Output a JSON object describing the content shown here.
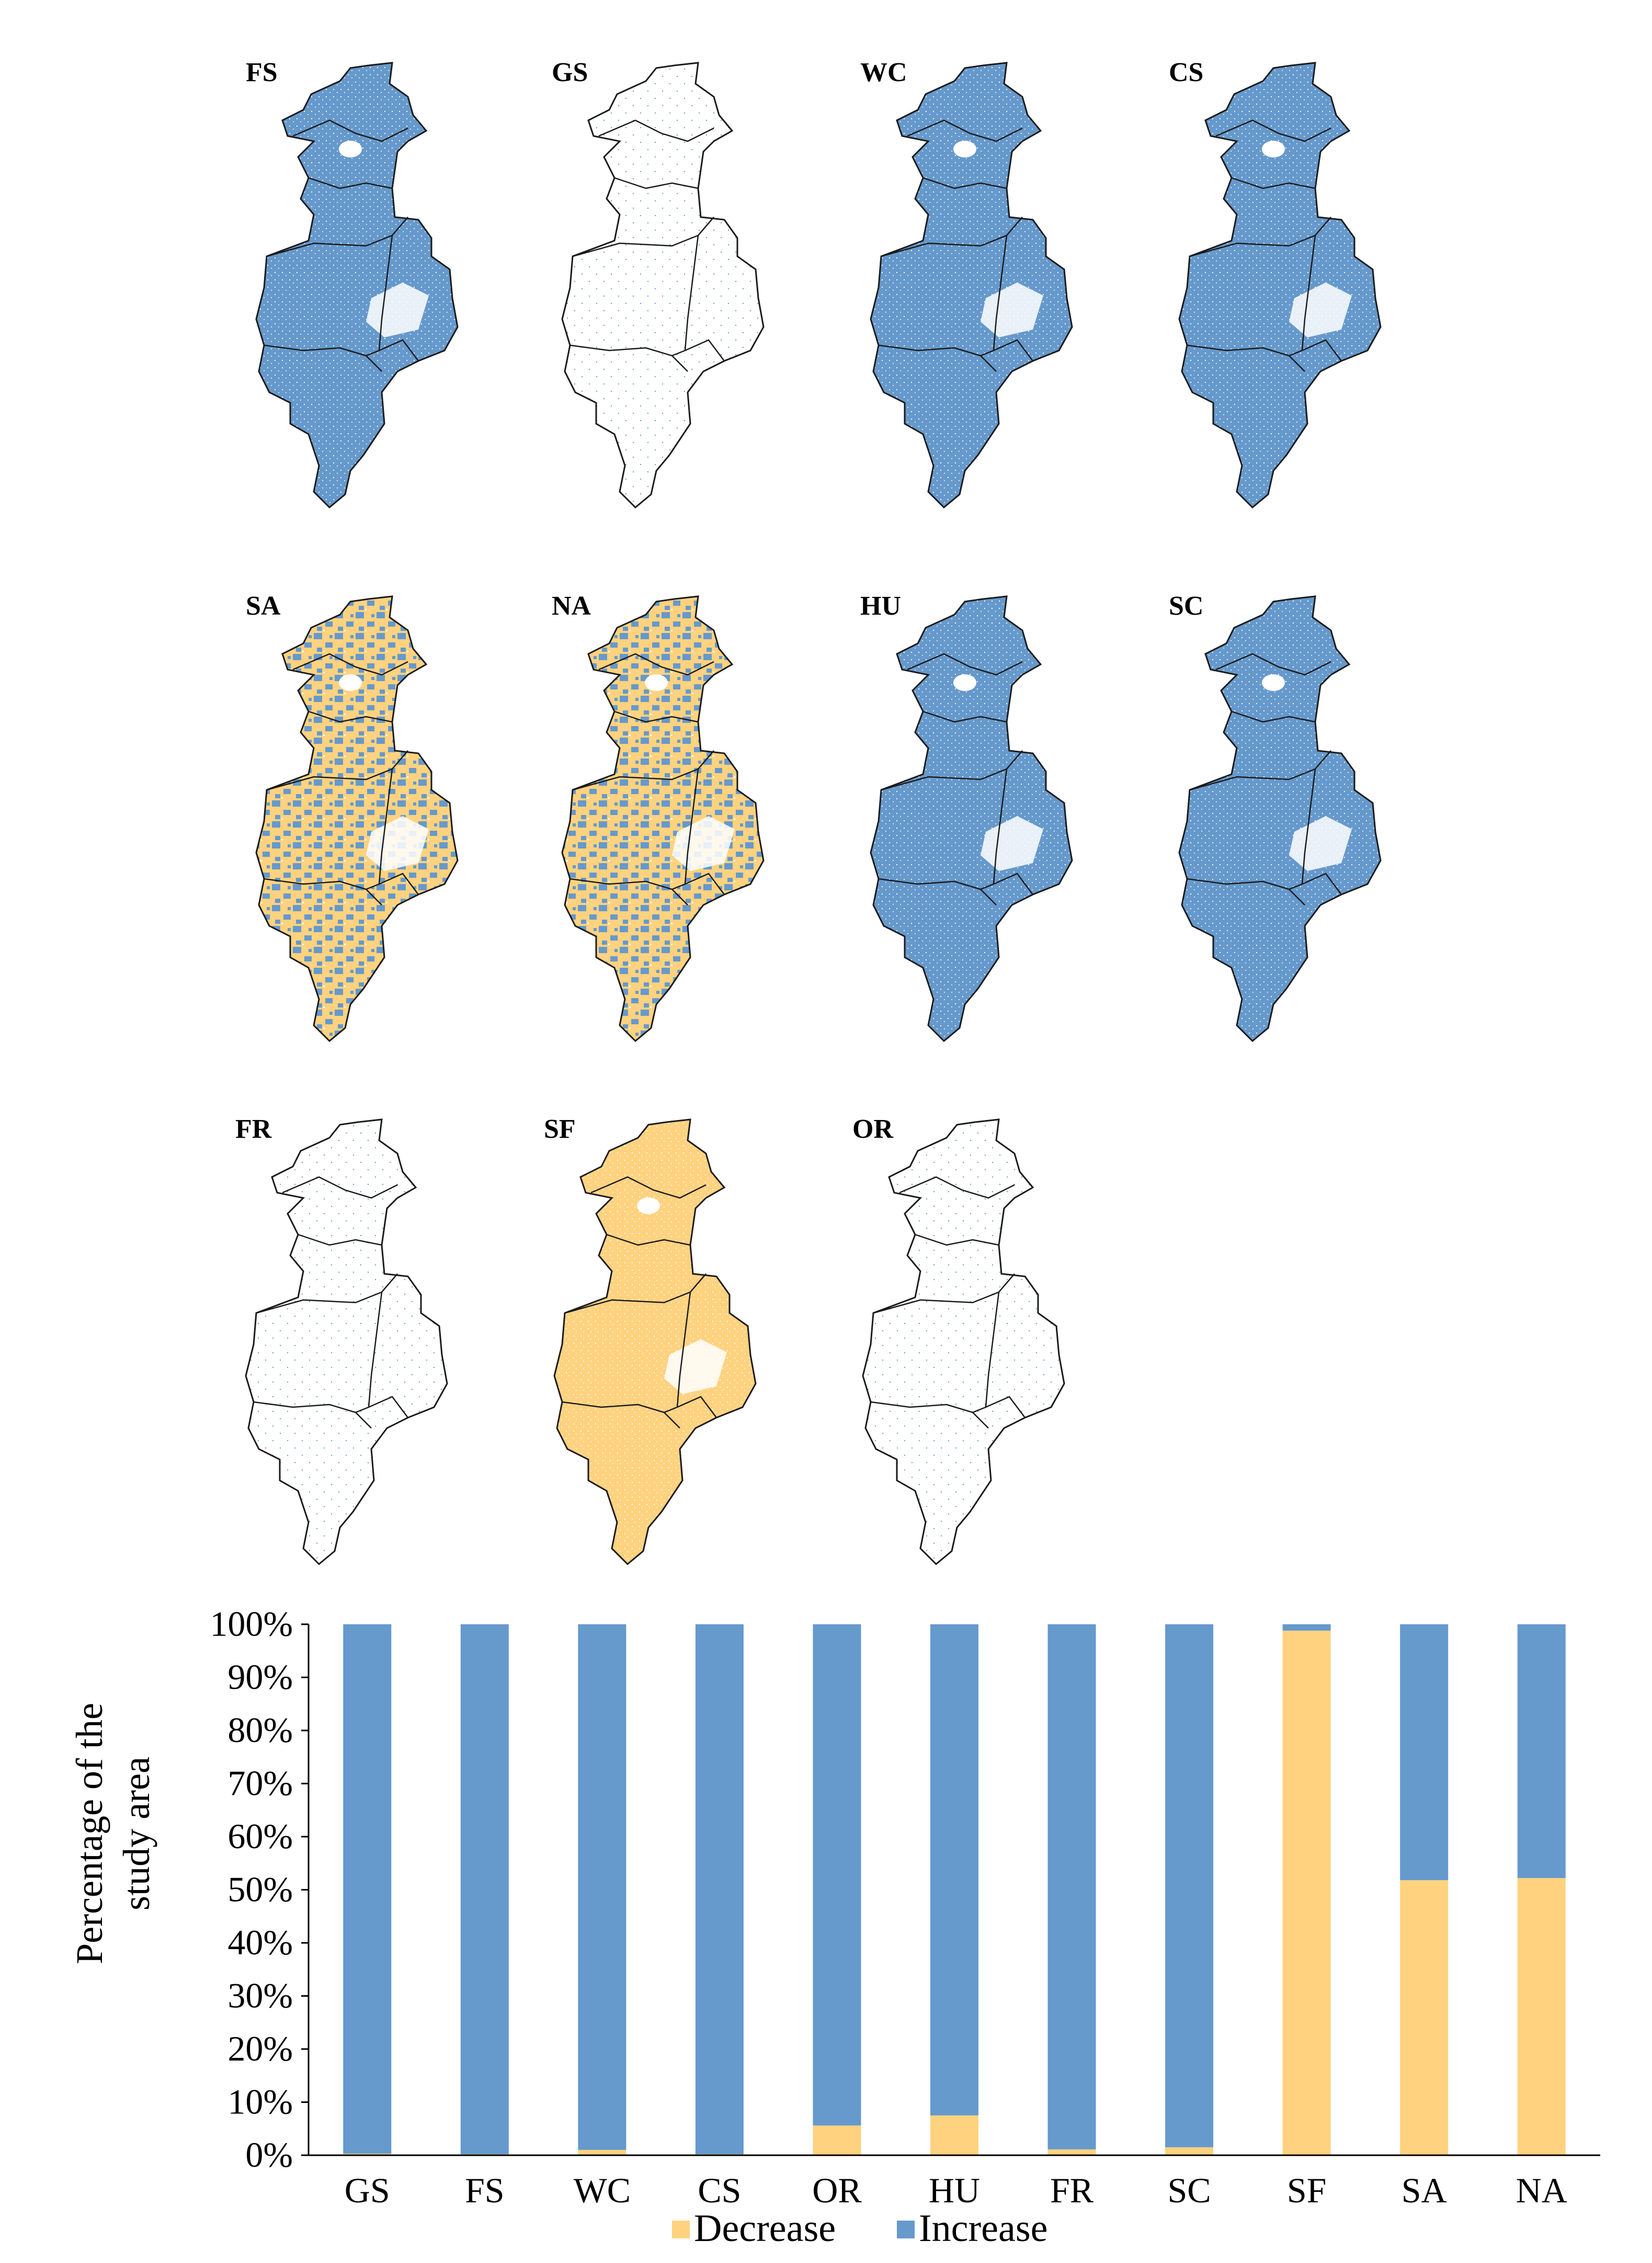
{
  "colors": {
    "increase": "#6699CC",
    "decrease": "#FFD27F",
    "outline": "#1a1a1a",
    "speckle": "#ffffff"
  },
  "maps": [
    {
      "label": "FS",
      "fill": "increase",
      "mixed": false,
      "sparse": false
    },
    {
      "label": "GS",
      "fill": "none",
      "mixed": false,
      "sparse": true
    },
    {
      "label": "WC",
      "fill": "increase",
      "mixed": false,
      "sparse": false
    },
    {
      "label": "CS",
      "fill": "increase",
      "mixed": false,
      "sparse": false
    },
    {
      "label": "SA",
      "fill": "increase",
      "mixed": true,
      "sparse": false
    },
    {
      "label": "NA",
      "fill": "increase",
      "mixed": true,
      "sparse": false
    },
    {
      "label": "HU",
      "fill": "increase",
      "mixed": false,
      "sparse": false
    },
    {
      "label": "SC",
      "fill": "increase",
      "mixed": false,
      "sparse": false
    },
    {
      "label": "FR",
      "fill": "none",
      "mixed": false,
      "sparse": true
    },
    {
      "label": "SF",
      "fill": "decrease",
      "mixed": false,
      "sparse": false
    },
    {
      "label": "OR",
      "fill": "none",
      "mixed": false,
      "sparse": true
    }
  ],
  "chart_data": {
    "type": "bar",
    "stacked": true,
    "categories": [
      "GS",
      "FS",
      "WC",
      "CS",
      "OR",
      "HU",
      "FR",
      "SC",
      "SF",
      "SA",
      "NA"
    ],
    "series": [
      {
        "name": "Decrease",
        "color": "#FFD27F",
        "values": [
          0.3,
          0.2,
          1.0,
          0.2,
          5.6,
          7.5,
          1.1,
          1.5,
          98.8,
          51.8,
          52.2
        ]
      },
      {
        "name": "Increase",
        "color": "#6699CC",
        "values": [
          99.7,
          99.8,
          99.0,
          99.8,
          94.4,
          92.5,
          98.9,
          98.5,
          1.2,
          48.2,
          47.8
        ]
      }
    ],
    "ylabel_line1": "Percentage of the",
    "ylabel_line2": "study area",
    "ylim": [
      0,
      100
    ],
    "yticks": [
      "0%",
      "10%",
      "20%",
      "30%",
      "40%",
      "50%",
      "60%",
      "70%",
      "80%",
      "90%",
      "100%"
    ],
    "legend": [
      "Decrease",
      "Increase"
    ],
    "legend_position": "bottom-center"
  }
}
